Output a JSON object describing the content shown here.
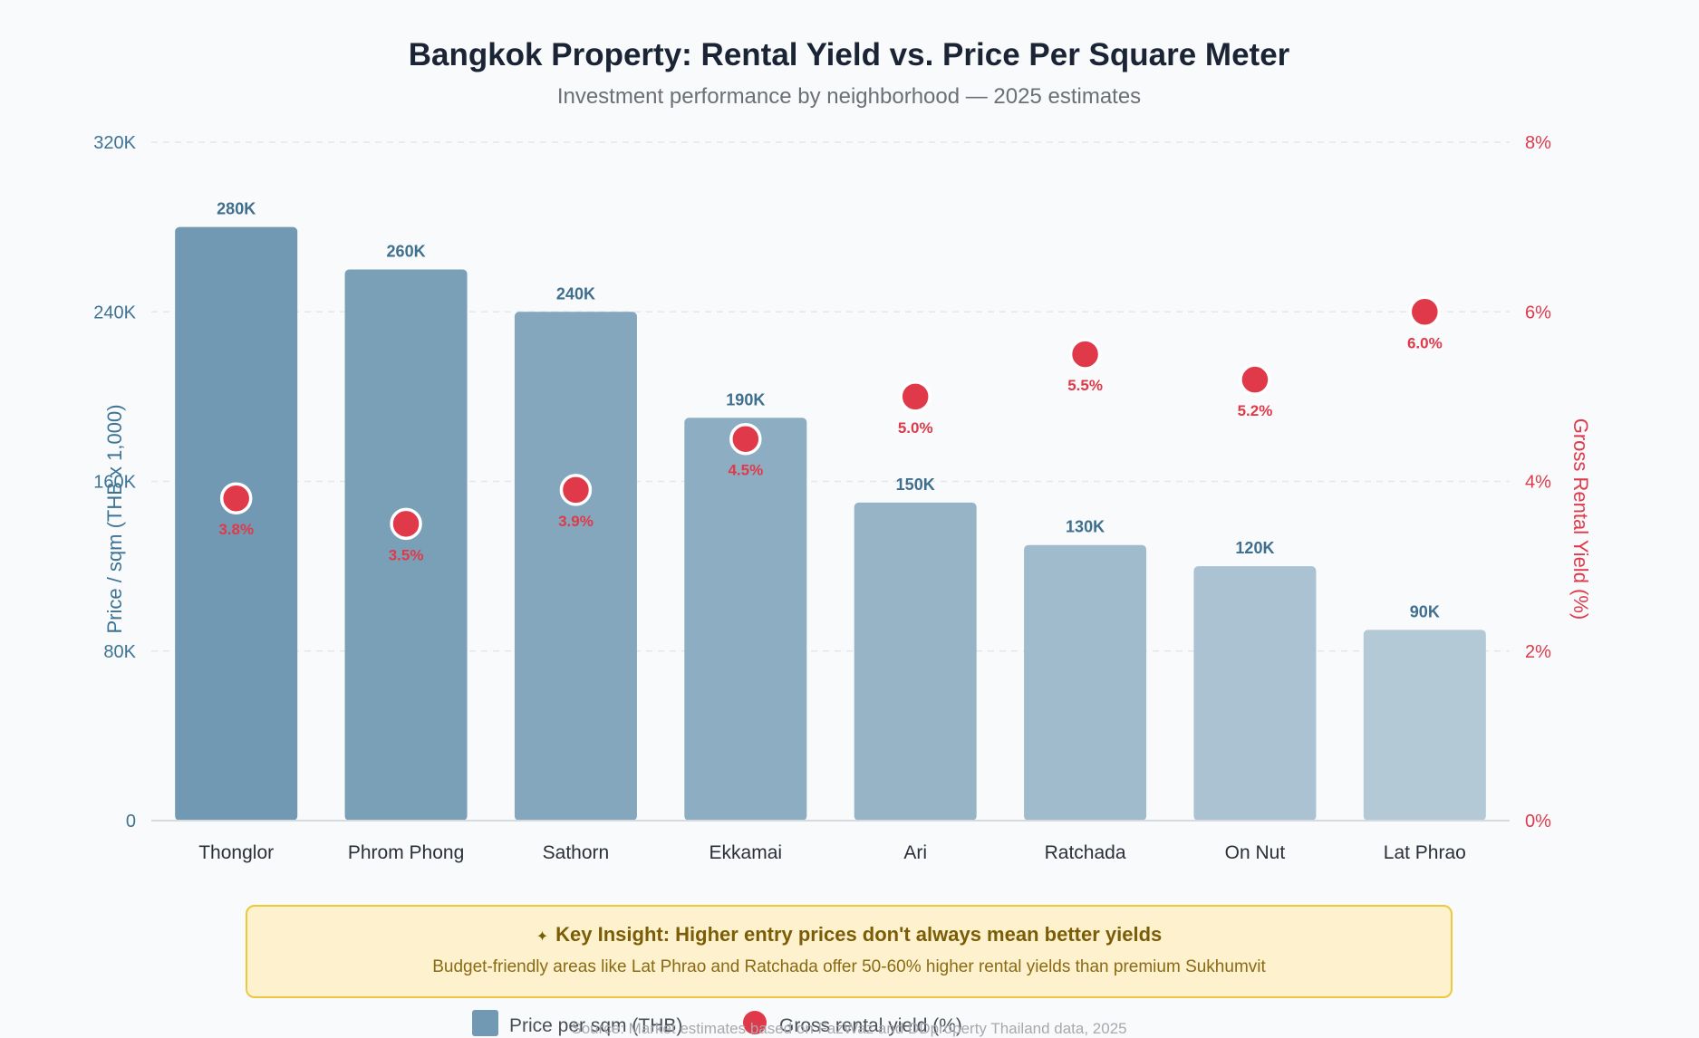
{
  "chart_data": {
    "type": "bar",
    "title": "Bangkok Property: Rental Yield vs. Price Per Square Meter",
    "subtitle": "Investment performance by neighborhood — 2025 estimates",
    "categories": [
      "Thonglor",
      "Phrom Phong",
      "Sathorn",
      "Ekkamai",
      "Ari",
      "Ratchada",
      "On Nut",
      "Lat Phrao"
    ],
    "series": [
      {
        "name": "Price per sqm (THB)",
        "axis": "left",
        "type": "bar",
        "values": [
          280,
          260,
          240,
          190,
          150,
          130,
          120,
          90
        ],
        "labels": [
          "280K",
          "260K",
          "240K",
          "190K",
          "150K",
          "130K",
          "120K",
          "90K"
        ],
        "color": "#7199b3"
      },
      {
        "name": "Gross rental yield (%)",
        "axis": "right",
        "type": "scatter",
        "values": [
          3.8,
          3.5,
          3.9,
          4.5,
          5.0,
          5.5,
          5.2,
          6.0
        ],
        "labels": [
          "3.8%",
          "3.5%",
          "3.9%",
          "4.5%",
          "5.0%",
          "5.5%",
          "5.2%",
          "6.0%"
        ],
        "color": "#e0394a"
      }
    ],
    "ylabel_left": "Price / sqm (THB x 1,000)",
    "ylabel_right": "Gross Rental Yield (%)",
    "ylim_left": [
      0,
      320
    ],
    "ylim_right": [
      0,
      8
    ],
    "yticks_left": [
      "0",
      "80K",
      "160K",
      "240K",
      "320K"
    ],
    "yticks_right": [
      "0%",
      "2%",
      "4%",
      "6%",
      "8%"
    ],
    "grid": true,
    "legend_position": "bottom"
  },
  "insight": {
    "icon": "lightbulb-icon",
    "title": "Key Insight: Higher entry prices don't always mean better yields",
    "text": "Budget-friendly areas like Lat Phrao and Ratchada offer 50-60% higher rental yields than premium Sukhumvit"
  },
  "source": "Source: Market estimates based on FazWaz and DDproperty Thailand data, 2025",
  "colors": {
    "bar_dark": "#7199b3",
    "bar_light": "#b3c9d6",
    "yield": "#e0394a",
    "left_axis": "#3e7394",
    "insight_bg": "#fdf2cd",
    "insight_border": "#edc73e"
  }
}
